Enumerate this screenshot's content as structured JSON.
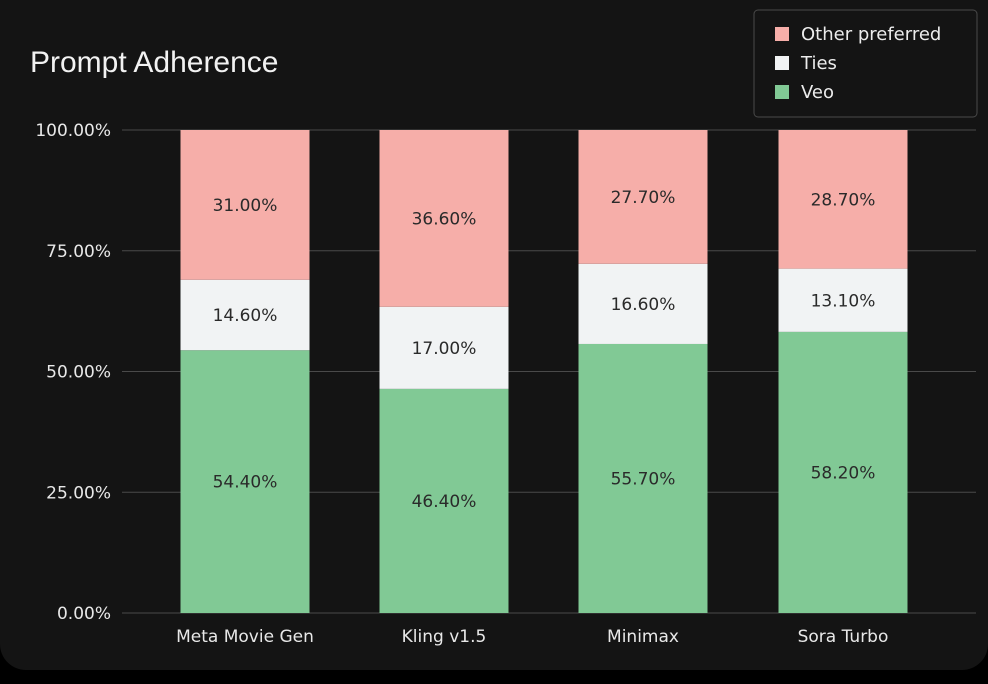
{
  "chart_data": {
    "type": "bar",
    "stacked": true,
    "title": "Prompt Adherence",
    "xlabel": "",
    "ylabel": "",
    "ylim": [
      0,
      100
    ],
    "y_ticks": [
      "0.00%",
      "25.00%",
      "50.00%",
      "75.00%",
      "100.00%"
    ],
    "y_tick_values": [
      0,
      25,
      50,
      75,
      100
    ],
    "grid": true,
    "legend_position": "top-right",
    "categories": [
      "Meta Movie Gen",
      "Kling v1.5",
      "Minimax",
      "Sora Turbo"
    ],
    "series": [
      {
        "name": "Veo",
        "values": [
          54.4,
          46.4,
          55.7,
          58.2
        ],
        "labels": [
          "54.40%",
          "46.40%",
          "55.70%",
          "58.20%"
        ],
        "color": "#81c995"
      },
      {
        "name": "Ties",
        "values": [
          14.6,
          17.0,
          16.6,
          13.1
        ],
        "labels": [
          "14.60%",
          "17.00%",
          "16.60%",
          "13.10%"
        ],
        "color": "#f1f3f4"
      },
      {
        "name": "Other preferred",
        "values": [
          31.0,
          36.6,
          27.7,
          28.7
        ],
        "labels": [
          "31.00%",
          "36.60%",
          "27.70%",
          "28.70%"
        ],
        "color": "#f6aea9"
      }
    ],
    "legend_order": [
      "Other preferred",
      "Ties",
      "Veo"
    ]
  },
  "colors": {
    "background": "#141414",
    "gridline": "#4a4a4a",
    "legend_border": "#4a4a4a"
  }
}
